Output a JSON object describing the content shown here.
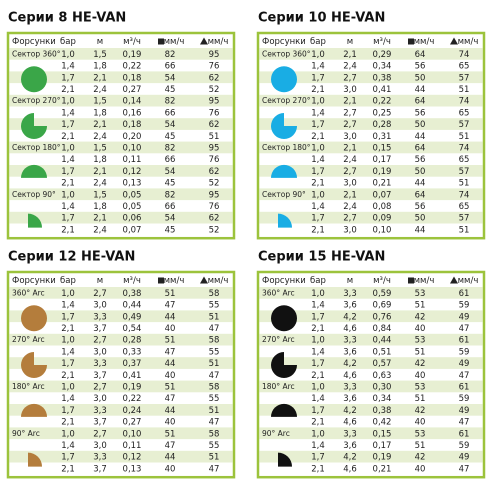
{
  "panels": [
    {
      "title": "Серии 8 HE-VAN",
      "header": [
        "Форсунки",
        "бар",
        "м",
        "м³/ч",
        "мм/ч",
        "мм/ч"
      ],
      "groups": [
        {
          "label": "Сектор 360°",
          "rows": [
            [
              "1,0",
              "1,5",
              "0,19",
              "82",
              "95"
            ],
            [
              "1,4",
              "1,8",
              "0,22",
              "66",
              "76"
            ],
            [
              "1,7",
              "2,1",
              "0,18",
              "54",
              "62"
            ],
            [
              "2,1",
              "2,4",
              "0,27",
              "45",
              "52"
            ]
          ]
        },
        {
          "label": "Сектор 270°",
          "rows": [
            [
              "1,0",
              "1,5",
              "0,14",
              "82",
              "95"
            ],
            [
              "1,4",
              "1,8",
              "0,16",
              "66",
              "76"
            ],
            [
              "1,7",
              "2,1",
              "0,18",
              "54",
              "62"
            ],
            [
              "2,1",
              "2,4",
              "0,20",
              "45",
              "51"
            ]
          ]
        },
        {
          "label": "Сектор 180°",
          "rows": [
            [
              "1,0",
              "1,5",
              "0,10",
              "82",
              "95"
            ],
            [
              "1,4",
              "1,8",
              "0,11",
              "66",
              "76"
            ],
            [
              "1,7",
              "2,1",
              "0,12",
              "54",
              "62"
            ],
            [
              "2,1",
              "2,4",
              "0,13",
              "45",
              "52"
            ]
          ]
        },
        {
          "label": "Сектор 90°",
          "rows": [
            [
              "1,0",
              "1,5",
              "0,05",
              "82",
              "95"
            ],
            [
              "1,4",
              "1,8",
              "0,05",
              "66",
              "76"
            ],
            [
              "1,7",
              "2,1",
              "0,06",
              "54",
              "62"
            ],
            [
              "2,1",
              "2,4",
              "0,07",
              "45",
              "52"
            ]
          ]
        }
      ]
    },
    {
      "title": "Серии 10 HE-VAN",
      "header": [
        "Форсунки",
        "бар",
        "м",
        "м³/ч",
        "мм/ч",
        "мм/ч"
      ],
      "groups": [
        {
          "label": "Сектор 360°",
          "rows": [
            [
              "1,0",
              "2,1",
              "0,29",
              "64",
              "74"
            ],
            [
              "1,4",
              "2,4",
              "0,34",
              "56",
              "65"
            ],
            [
              "1,7",
              "2,7",
              "0,38",
              "50",
              "57"
            ],
            [
              "2,1",
              "3,0",
              "0,41",
              "44",
              "51"
            ]
          ]
        },
        {
          "label": "Сектор 270°",
          "rows": [
            [
              "1,0",
              "2,1",
              "0,22",
              "64",
              "74"
            ],
            [
              "1,4",
              "2,7",
              "0,25",
              "56",
              "65"
            ],
            [
              "1,7",
              "2,7",
              "0,28",
              "50",
              "57"
            ],
            [
              "2,1",
              "3,0",
              "0,31",
              "44",
              "51"
            ]
          ]
        },
        {
          "label": "Сектор 180°",
          "rows": [
            [
              "1,0",
              "2,1",
              "0,15",
              "64",
              "74"
            ],
            [
              "1,4",
              "2,4",
              "0,17",
              "56",
              "65"
            ],
            [
              "1,7",
              "2,7",
              "0,19",
              "50",
              "57"
            ],
            [
              "2,1",
              "3,0",
              "0,21",
              "44",
              "51"
            ]
          ]
        },
        {
          "label": "Сектор 90°",
          "rows": [
            [
              "1,0",
              "2,1",
              "0,07",
              "64",
              "74"
            ],
            [
              "1,4",
              "2,4",
              "0,08",
              "56",
              "65"
            ],
            [
              "1,7",
              "2,7",
              "0,09",
              "50",
              "57"
            ],
            [
              "2,1",
              "3,0",
              "0,10",
              "44",
              "51"
            ]
          ]
        }
      ]
    },
    {
      "title": "Серии 12 HE-VAN",
      "header": [
        "Форсунки",
        "бар",
        "м",
        "м³/ч",
        "мм/ч",
        "мм/ч"
      ],
      "groups": [
        {
          "label": "360° Arc",
          "rows": [
            [
              "1,0",
              "2,7",
              "0,38",
              "51",
              "58"
            ],
            [
              "1,4",
              "3,0",
              "0,44",
              "47",
              "55"
            ],
            [
              "1,7",
              "3,3",
              "0,49",
              "44",
              "51"
            ],
            [
              "2,1",
              "3,7",
              "0,54",
              "40",
              "47"
            ]
          ]
        },
        {
          "label": "270° Arc",
          "rows": [
            [
              "1,0",
              "2,7",
              "0,28",
              "51",
              "58"
            ],
            [
              "1,4",
              "3,0",
              "0,33",
              "47",
              "55"
            ],
            [
              "1,7",
              "3,3",
              "0,37",
              "44",
              "51"
            ],
            [
              "2,1",
              "3,7",
              "0,41",
              "40",
              "47"
            ]
          ]
        },
        {
          "label": "180° Arc",
          "rows": [
            [
              "1,0",
              "2,7",
              "0,19",
              "51",
              "58"
            ],
            [
              "1,4",
              "3,0",
              "0,22",
              "47",
              "55"
            ],
            [
              "1,7",
              "3,3",
              "0,24",
              "44",
              "51"
            ],
            [
              "2,1",
              "3,7",
              "0,27",
              "40",
              "47"
            ]
          ]
        },
        {
          "label": "90° Arc",
          "rows": [
            [
              "1,0",
              "2,7",
              "0,10",
              "51",
              "58"
            ],
            [
              "1,4",
              "3,0",
              "0,11",
              "47",
              "55"
            ],
            [
              "1,7",
              "3,3",
              "0,12",
              "44",
              "51"
            ],
            [
              "2,1",
              "3,7",
              "0,13",
              "40",
              "47"
            ]
          ]
        }
      ]
    },
    {
      "title": "Серии 15 HE-VAN",
      "header": [
        "Форсунки",
        "бар",
        "м",
        "м³/ч",
        "мм/ч",
        "мм/ч"
      ],
      "groups": [
        {
          "label": "360° Arc",
          "rows": [
            [
              "1,0",
              "3,3",
              "0,59",
              "53",
              "61"
            ],
            [
              "1,4",
              "3,6",
              "0,69",
              "51",
              "59"
            ],
            [
              "1,7",
              "4,2",
              "0,76",
              "42",
              "49"
            ],
            [
              "2,1",
              "4,6",
              "0,84",
              "40",
              "47"
            ]
          ]
        },
        {
          "label": "270° Arc",
          "rows": [
            [
              "1,0",
              "3,3",
              "0,44",
              "53",
              "61"
            ],
            [
              "1,4",
              "3,6",
              "0,51",
              "51",
              "59"
            ],
            [
              "1,7",
              "4,2",
              "0,57",
              "42",
              "49"
            ],
            [
              "2,1",
              "4,6",
              "0,63",
              "40",
              "47"
            ]
          ]
        },
        {
          "label": "180° Arc",
          "rows": [
            [
              "1,0",
              "3,3",
              "0,30",
              "53",
              "61"
            ],
            [
              "1,4",
              "3,6",
              "0,34",
              "51",
              "59"
            ],
            [
              "1,7",
              "4,2",
              "0,38",
              "42",
              "49"
            ],
            [
              "2,1",
              "4,6",
              "0,42",
              "40",
              "47"
            ]
          ]
        },
        {
          "label": "90° Arc",
          "rows": [
            [
              "1,0",
              "3,3",
              "0,15",
              "53",
              "61"
            ],
            [
              "1,4",
              "3,6",
              "0,17",
              "51",
              "59"
            ],
            [
              "1,7",
              "4,2",
              "0,19",
              "42",
              "49"
            ],
            [
              "2,1",
              "4,6",
              "0,21",
              "40",
              "47"
            ]
          ]
        }
      ]
    }
  ]
}
